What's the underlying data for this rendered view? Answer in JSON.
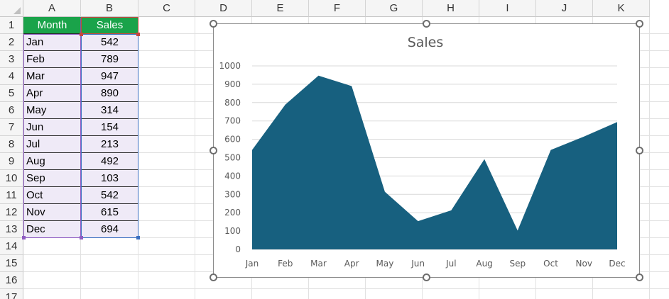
{
  "sheet": {
    "columns": [
      "A",
      "B",
      "C",
      "D",
      "E",
      "F",
      "G",
      "H",
      "I",
      "J",
      "K"
    ],
    "rows": [
      "1",
      "2",
      "3",
      "4",
      "5",
      "6",
      "7",
      "8",
      "9",
      "10",
      "11",
      "12",
      "13",
      "14",
      "15",
      "16",
      "17"
    ],
    "header": {
      "month": "Month",
      "sales": "Sales"
    },
    "data": [
      {
        "month": "Jan",
        "sales": "542"
      },
      {
        "month": "Feb",
        "sales": "789"
      },
      {
        "month": "Mar",
        "sales": "947"
      },
      {
        "month": "Apr",
        "sales": "890"
      },
      {
        "month": "May",
        "sales": "314"
      },
      {
        "month": "Jun",
        "sales": "154"
      },
      {
        "month": "Jul",
        "sales": "213"
      },
      {
        "month": "Aug",
        "sales": "492"
      },
      {
        "month": "Sep",
        "sales": "103"
      },
      {
        "month": "Oct",
        "sales": "542"
      },
      {
        "month": "Nov",
        "sales": "615"
      },
      {
        "month": "Dec",
        "sales": "694"
      }
    ]
  },
  "colors": {
    "header_fill": "#1aa34a",
    "data_fill": "#efeaf7",
    "area_fill": "#17607f",
    "gridline": "#d9d9d9"
  },
  "chart_data": {
    "type": "area",
    "title": "Sales",
    "categories": [
      "Jan",
      "Feb",
      "Mar",
      "Apr",
      "May",
      "Jun",
      "Jul",
      "Aug",
      "Sep",
      "Oct",
      "Nov",
      "Dec"
    ],
    "values": [
      542,
      789,
      947,
      890,
      314,
      154,
      213,
      492,
      103,
      542,
      615,
      694
    ],
    "y_ticks": [
      "0",
      "100",
      "200",
      "300",
      "400",
      "500",
      "600",
      "700",
      "800",
      "900",
      "1000"
    ],
    "ylim": [
      0,
      1000
    ],
    "grid": true,
    "legend": "none"
  }
}
